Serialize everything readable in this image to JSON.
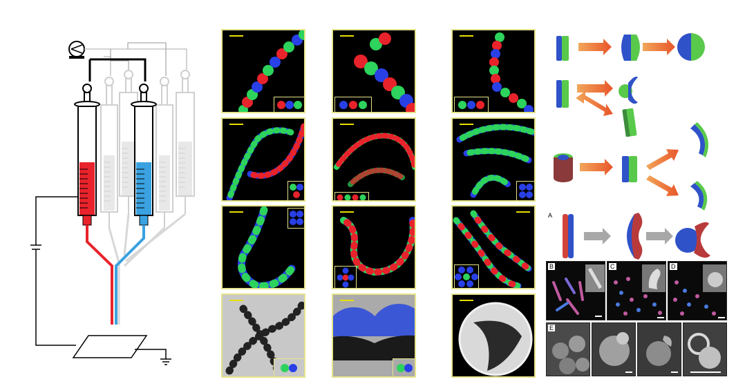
{
  "figure": {
    "panel_letters": [
      "A",
      "B",
      "C",
      "D",
      "E"
    ]
  },
  "colors": {
    "red_phase": "#e8232b",
    "blue_phase": "#3aa2e0",
    "green_particle": "#2dd35c",
    "blue_particle": "#2840e6",
    "panel_border": "#e6e48a",
    "arrow_orange": "#f08a2c"
  }
}
